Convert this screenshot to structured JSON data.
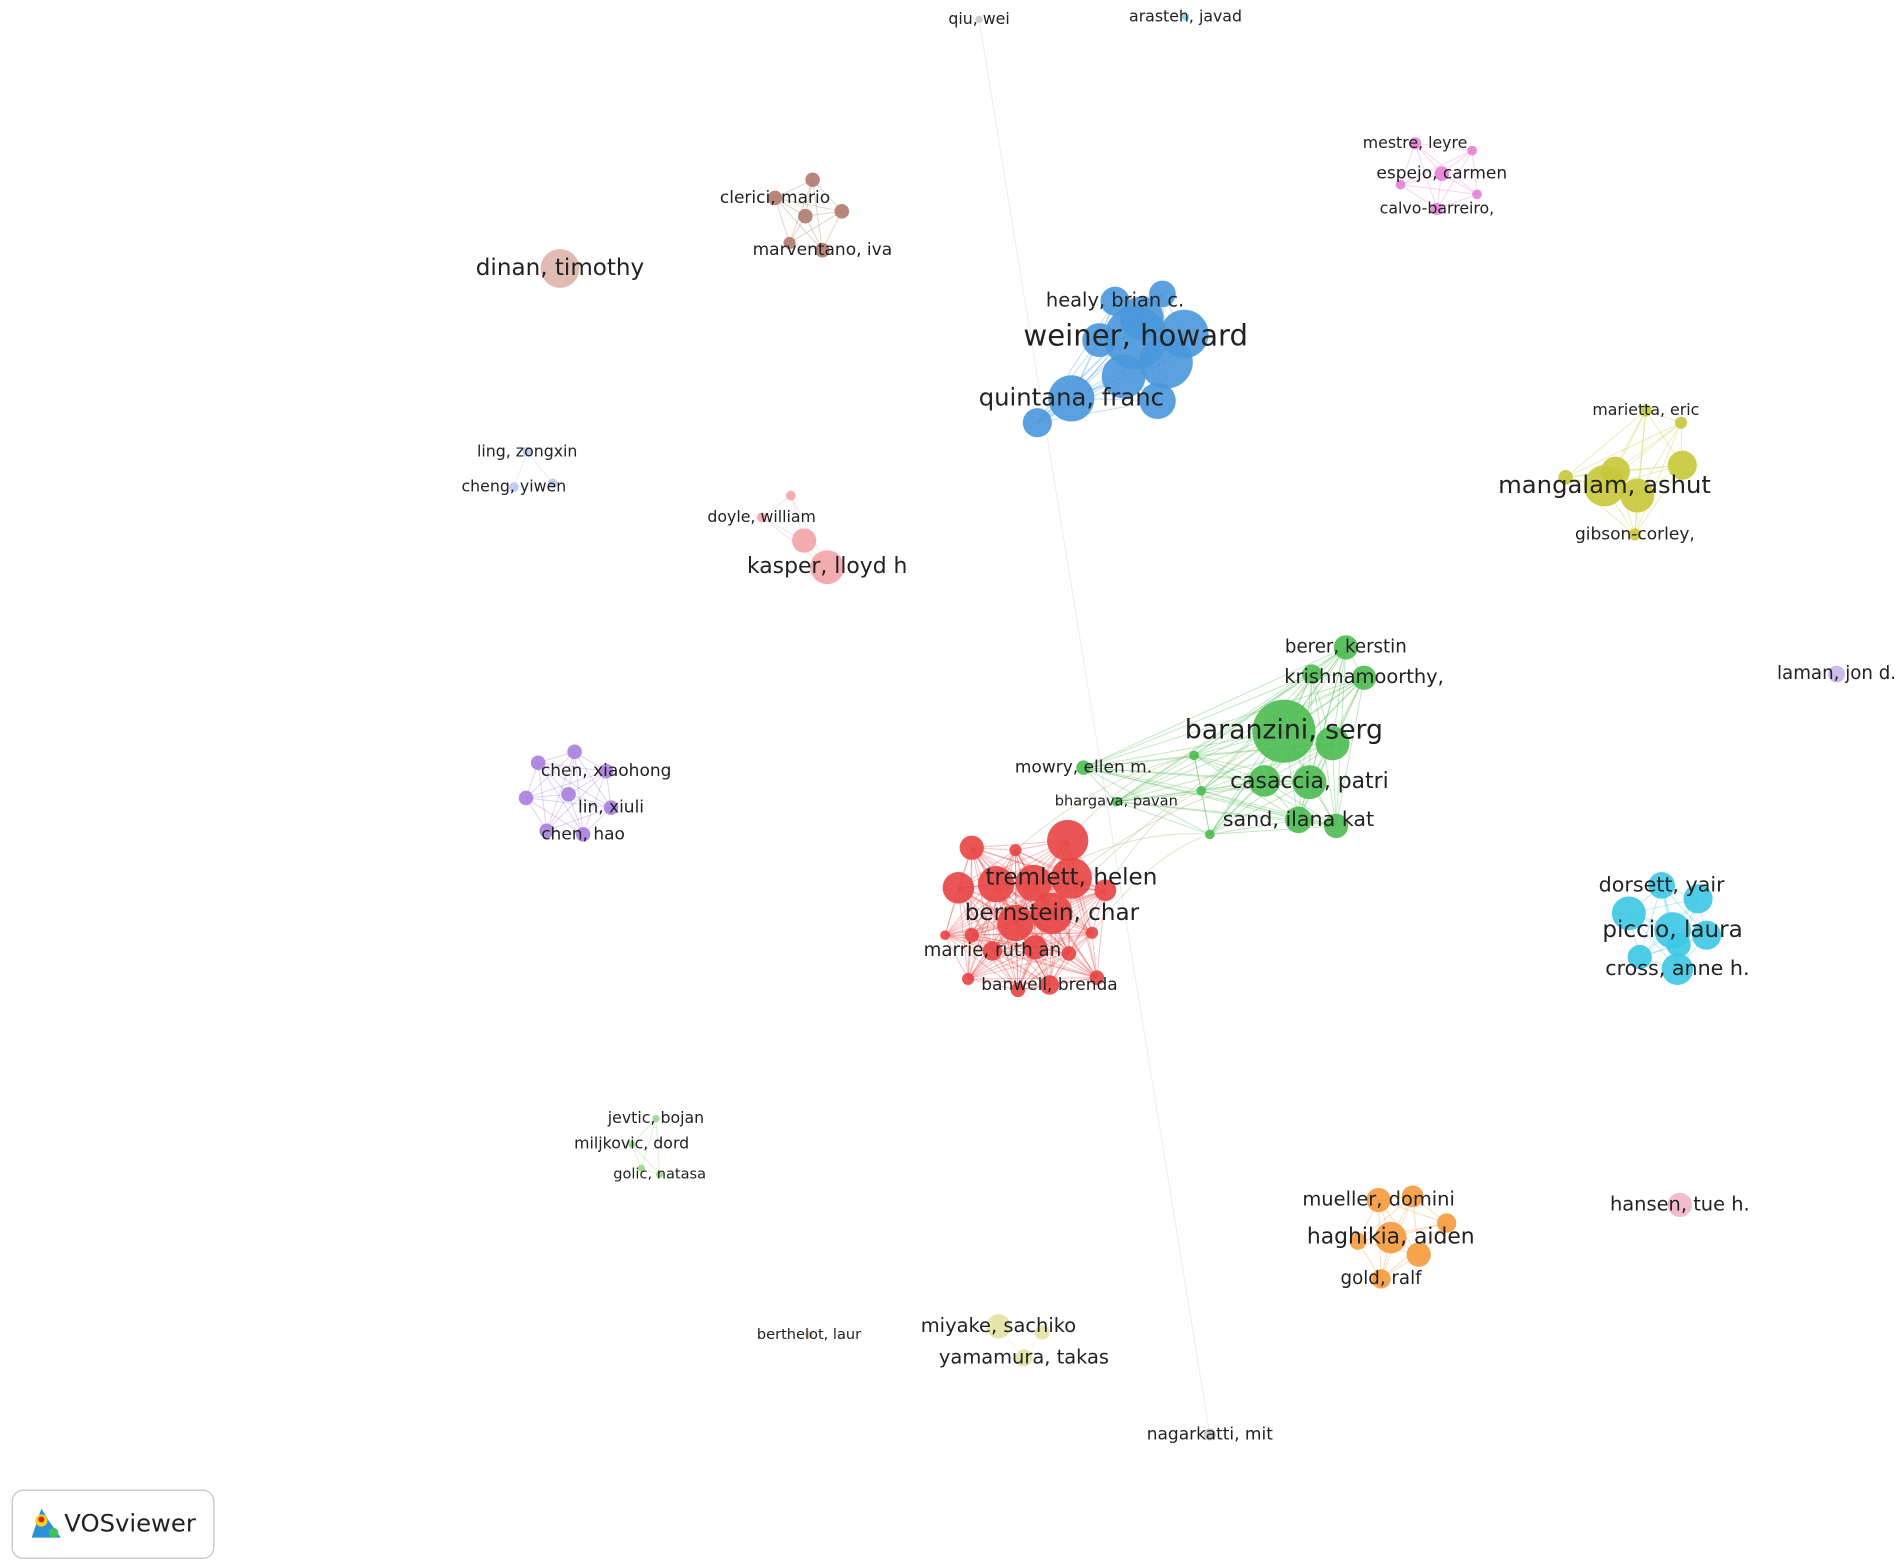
{
  "nodes": [
    {
      "label": "qiu, wei"
    },
    {
      "label": "arasteh, javad"
    },
    {
      "label": "mestre, leyre"
    },
    {
      "label": "espejo, carmen"
    },
    {
      "label": "calvo-barreiro,"
    },
    {
      "label": "clerici, mario"
    },
    {
      "label": "marventano, iva"
    },
    {
      "label": "dinan, timothy"
    },
    {
      "label": "healy, brian c."
    },
    {
      "label": "weiner, howard"
    },
    {
      "label": "quintana, franc"
    },
    {
      "label": "marietta, eric"
    },
    {
      "label": "mangalam, ashut"
    },
    {
      "label": "gibson-corley,"
    },
    {
      "label": "ling, zongxin"
    },
    {
      "label": "cheng, yiwen"
    },
    {
      "label": "doyle, william"
    },
    {
      "label": "kasper, lloyd h"
    },
    {
      "label": "berer, kerstin"
    },
    {
      "label": "krishnamoorthy,"
    },
    {
      "label": "laman, jon d."
    },
    {
      "label": "baranzini, serg"
    },
    {
      "label": "mowry, ellen m."
    },
    {
      "label": "casaccia, patri"
    },
    {
      "label": "bhargava, pavan"
    },
    {
      "label": "sand, ilana kat"
    },
    {
      "label": "chen, xiaohong"
    },
    {
      "label": "lin, xiuli"
    },
    {
      "label": "chen, hao"
    },
    {
      "label": "tremlett, helen"
    },
    {
      "label": "bernstein, char"
    },
    {
      "label": "marrie, ruth an"
    },
    {
      "label": "banwell, brenda"
    },
    {
      "label": "dorsett, yair"
    },
    {
      "label": "piccio, laura"
    },
    {
      "label": "cross, anne h."
    },
    {
      "label": "jevtic, bojan"
    },
    {
      "label": "miljkovic, dord"
    },
    {
      "label": "golic, natasa"
    },
    {
      "label": "mueller, domini"
    },
    {
      "label": "haghikia, aiden"
    },
    {
      "label": "gold, ralf"
    },
    {
      "label": "hansen, tue h."
    },
    {
      "label": "miyake, sachiko"
    },
    {
      "label": "yamamura, takas"
    },
    {
      "label": "berthelot, laur"
    },
    {
      "label": "nagarkatti, mit"
    }
  ],
  "logo": "VOSviewer"
}
